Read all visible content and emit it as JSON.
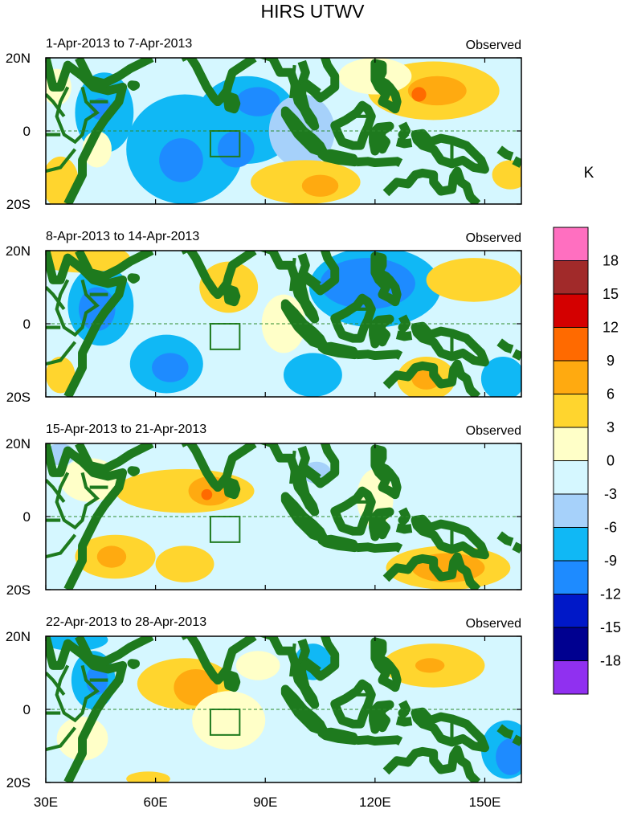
{
  "title": "HIRS UTWV",
  "units": "K",
  "panel_label": "Observed",
  "lat_labels": [
    "20N",
    "0",
    "20S"
  ],
  "lon_labels": [
    "30E",
    "60E",
    "90E",
    "120E",
    "150E"
  ],
  "lon_values": [
    30,
    60,
    90,
    120,
    150
  ],
  "lon_range": [
    30,
    160
  ],
  "lat_range": [
    -20,
    20
  ],
  "colorbar": {
    "ticks": [
      "18",
      "15",
      "12",
      "9",
      "6",
      "3",
      "0",
      "-3",
      "-6",
      "-9",
      "-12",
      "-15",
      "-18"
    ],
    "colors": [
      "#ff6fc0",
      "#a12a2a",
      "#d40000",
      "#ff6a00",
      "#ffaa10",
      "#ffd52e",
      "#ffffc8",
      "#d5f7ff",
      "#a6d1fa",
      "#10b8f5",
      "#1e8bff",
      "#0018c8",
      "#000090",
      "#9030f0"
    ]
  },
  "palette": {
    "ocean": "#d5f7ff",
    "coast": "#1e7a1e",
    "equator": "#2e8b2e",
    "pos3": "#ffffc8",
    "pos6": "#ffd52e",
    "pos9": "#ffaa10",
    "pos12": "#ff6a00",
    "pos15": "#d40000",
    "neg3": "#a6d1fa",
    "neg6": "#10b8f5",
    "neg9": "#1e8bff"
  },
  "panels": [
    {
      "date_range": "1-Apr-2013 to 7-Apr-2013",
      "anomalies": [
        {
          "lon": 46,
          "lat": 5,
          "rlon": 8,
          "rlat": 11,
          "v": -6
        },
        {
          "lon": 45,
          "lat": 6,
          "rlon": 3,
          "rlat": 3,
          "v": -9
        },
        {
          "lon": 68,
          "lat": -5,
          "rlon": 16,
          "rlat": 15,
          "v": -6
        },
        {
          "lon": 67,
          "lat": -8,
          "rlon": 6,
          "rlat": 6,
          "v": -9
        },
        {
          "lon": 85,
          "lat": 3,
          "rlon": 14,
          "rlat": 12,
          "v": -6
        },
        {
          "lon": 88,
          "lat": 8,
          "rlon": 6,
          "rlat": 4,
          "v": -9
        },
        {
          "lon": 82,
          "lat": -5,
          "rlon": 5,
          "rlat": 5,
          "v": -9
        },
        {
          "lon": 100,
          "lat": 0,
          "rlon": 9,
          "rlat": 10,
          "v": -3
        },
        {
          "lon": 34,
          "lat": -14,
          "rlon": 5,
          "rlat": 7,
          "v": 6
        },
        {
          "lon": 33,
          "lat": 12,
          "rlon": 4,
          "rlat": 5,
          "v": 3
        },
        {
          "lon": 44,
          "lat": -5,
          "rlon": 4,
          "rlat": 5,
          "v": 3
        },
        {
          "lon": 101,
          "lat": -14,
          "rlon": 15,
          "rlat": 6,
          "v": 6
        },
        {
          "lon": 105,
          "lat": -15,
          "rlon": 5,
          "rlat": 3,
          "v": 9
        },
        {
          "lon": 136,
          "lat": 11,
          "rlon": 18,
          "rlat": 8,
          "v": 6
        },
        {
          "lon": 137,
          "lat": 11,
          "rlon": 8,
          "rlat": 4,
          "v": 9
        },
        {
          "lon": 132,
          "lat": 10,
          "rlon": 2,
          "rlat": 2,
          "v": 12
        },
        {
          "lon": 157,
          "lat": -12,
          "rlon": 5,
          "rlat": 4,
          "v": 6
        },
        {
          "lon": 120,
          "lat": 15,
          "rlon": 10,
          "rlat": 5,
          "v": 3
        }
      ]
    },
    {
      "date_range": "8-Apr-2013 to 14-Apr-2013",
      "anomalies": [
        {
          "lon": 45,
          "lat": 5,
          "rlon": 9,
          "rlat": 11,
          "v": -6
        },
        {
          "lon": 44,
          "lat": 4,
          "rlon": 5,
          "rlat": 6,
          "v": -9
        },
        {
          "lon": 63,
          "lat": -11,
          "rlon": 10,
          "rlat": 8,
          "v": -6
        },
        {
          "lon": 64,
          "lat": -12,
          "rlon": 5,
          "rlat": 4,
          "v": -9
        },
        {
          "lon": 120,
          "lat": 10,
          "rlon": 18,
          "rlat": 11,
          "v": -6
        },
        {
          "lon": 118,
          "lat": 11,
          "rlon": 13,
          "rlat": 7,
          "v": -9
        },
        {
          "lon": 103,
          "lat": -14,
          "rlon": 8,
          "rlat": 6,
          "v": -6
        },
        {
          "lon": 155,
          "lat": -15,
          "rlon": 6,
          "rlat": 6,
          "v": -6
        },
        {
          "lon": 40,
          "lat": 18,
          "rlon": 13,
          "rlat": 4,
          "v": 6
        },
        {
          "lon": 80,
          "lat": 10,
          "rlon": 8,
          "rlat": 7,
          "v": 6
        },
        {
          "lon": 134,
          "lat": -15,
          "rlon": 8,
          "rlat": 6,
          "v": 6
        },
        {
          "lon": 134,
          "lat": -15,
          "rlon": 4,
          "rlat": 3,
          "v": 9
        },
        {
          "lon": 147,
          "lat": 12,
          "rlon": 13,
          "rlat": 6,
          "v": 6
        },
        {
          "lon": 34,
          "lat": -14,
          "rlon": 4,
          "rlat": 5,
          "v": 6
        },
        {
          "lon": 95,
          "lat": 0,
          "rlon": 6,
          "rlat": 8,
          "v": 3
        }
      ]
    },
    {
      "date_range": "15-Apr-2013 to 21-Apr-2013",
      "anomalies": [
        {
          "lon": 68,
          "lat": 7,
          "rlon": 19,
          "rlat": 6,
          "v": 6
        },
        {
          "lon": 75,
          "lat": 7,
          "rlon": 6,
          "rlat": 4,
          "v": 9
        },
        {
          "lon": 74,
          "lat": 6,
          "rlon": 1.5,
          "rlat": 1.5,
          "v": 12
        },
        {
          "lon": 49,
          "lat": -11,
          "rlon": 11,
          "rlat": 6,
          "v": 6
        },
        {
          "lon": 48,
          "lat": -11,
          "rlon": 4,
          "rlat": 3,
          "v": 9
        },
        {
          "lon": 68,
          "lat": -13,
          "rlon": 8,
          "rlat": 5,
          "v": 6
        },
        {
          "lon": 140,
          "lat": -14,
          "rlon": 17,
          "rlat": 6,
          "v": 6
        },
        {
          "lon": 140,
          "lat": -14,
          "rlon": 10,
          "rlat": 4,
          "v": 9
        },
        {
          "lon": 42,
          "lat": 10,
          "rlon": 8,
          "rlat": 6,
          "v": 3
        },
        {
          "lon": 120,
          "lat": 5,
          "rlon": 5,
          "rlat": 8,
          "v": 3
        },
        {
          "lon": 34,
          "lat": 17,
          "rlon": 4,
          "rlat": 3,
          "v": -3
        },
        {
          "lon": 104,
          "lat": 12,
          "rlon": 4,
          "rlat": 3,
          "v": -3
        }
      ]
    },
    {
      "date_range": "22-Apr-2013 to 28-Apr-2013",
      "anomalies": [
        {
          "lon": 68,
          "lat": 7,
          "rlon": 13,
          "rlat": 7,
          "v": 6
        },
        {
          "lon": 71,
          "lat": 6,
          "rlon": 6,
          "rlat": 5,
          "v": 9
        },
        {
          "lon": 136,
          "lat": 12,
          "rlon": 14,
          "rlat": 6,
          "v": 6
        },
        {
          "lon": 135,
          "lat": 12,
          "rlon": 4,
          "rlat": 2,
          "v": 9
        },
        {
          "lon": 43,
          "lat": 8,
          "rlon": 6,
          "rlat": 8,
          "v": -6
        },
        {
          "lon": 44,
          "lat": 8,
          "rlon": 3,
          "rlat": 4,
          "v": -9
        },
        {
          "lon": 38,
          "lat": 19,
          "rlon": 9,
          "rlat": 3,
          "v": -6
        },
        {
          "lon": 156,
          "lat": -11,
          "rlon": 7,
          "rlat": 8,
          "v": -6
        },
        {
          "lon": 157,
          "lat": -13,
          "rlon": 4,
          "rlat": 5,
          "v": -9
        },
        {
          "lon": 103,
          "lat": 13,
          "rlon": 5,
          "rlat": 5,
          "v": -6
        },
        {
          "lon": 58,
          "lat": -19,
          "rlon": 6,
          "rlat": 2,
          "v": 6
        },
        {
          "lon": 80,
          "lat": -3,
          "rlon": 10,
          "rlat": 8,
          "v": 3
        },
        {
          "lon": 40,
          "lat": -8,
          "rlon": 7,
          "rlat": 6,
          "v": 3
        },
        {
          "lon": 88,
          "lat": 12,
          "rlon": 6,
          "rlat": 4,
          "v": 3
        }
      ]
    }
  ]
}
